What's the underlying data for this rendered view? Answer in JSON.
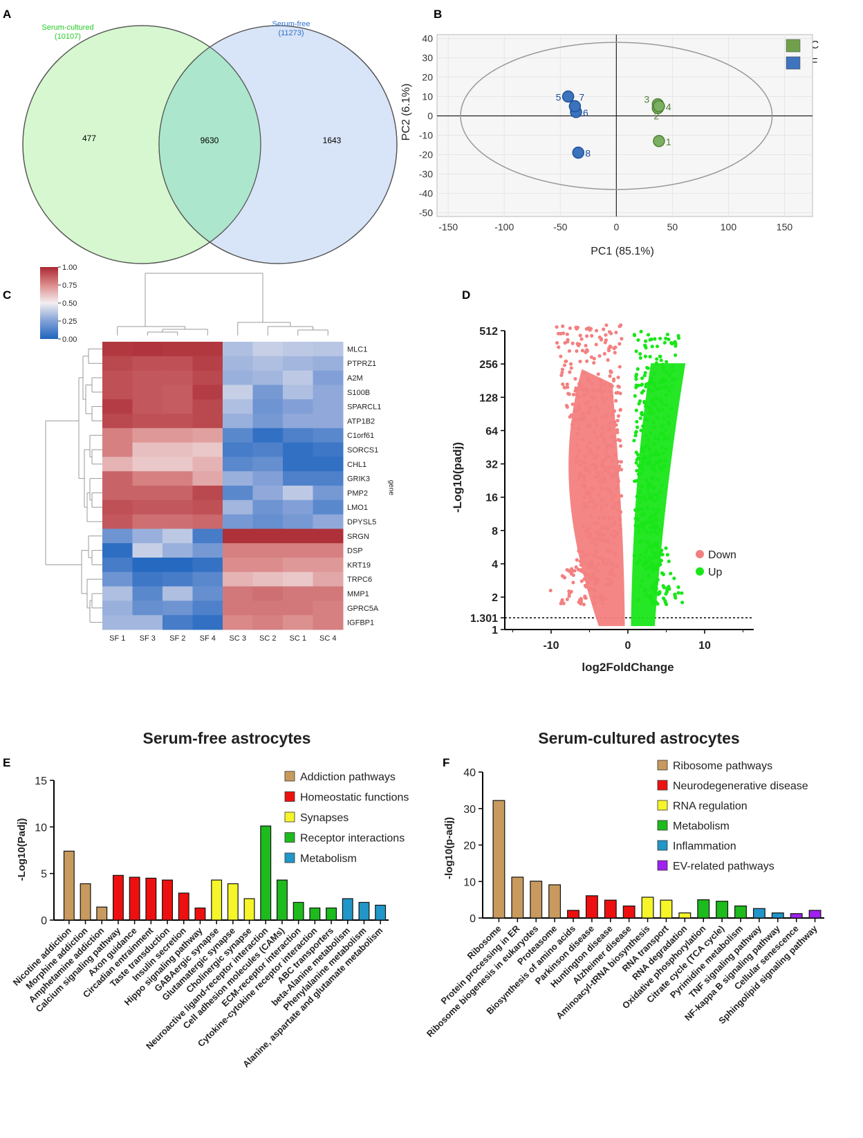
{
  "panel_labels": {
    "a": "A",
    "b": "B",
    "c": "C",
    "d": "D",
    "e": "E",
    "f": "F"
  },
  "chart_data": [
    {
      "type": "venn",
      "sets": [
        {
          "name": "Serum-cultured",
          "count_label": "(10107)",
          "only": "477",
          "color": "#d6f7cf"
        },
        {
          "name": "Serum-free",
          "count_label": "(11273)",
          "only": "1643",
          "color": "#d8e4f7"
        }
      ],
      "intersection": "9630"
    },
    {
      "type": "scatter",
      "title": "",
      "xlabel": "PC1 (85.1%)",
      "ylabel": "PC2 (6.1%)",
      "xlim": [
        -160,
        175
      ],
      "ylim": [
        -52,
        42
      ],
      "xticks": [
        -150,
        -100,
        -50,
        0,
        50,
        100,
        150
      ],
      "yticks": [
        40,
        30,
        20,
        10,
        0,
        -10,
        -20,
        -30,
        -40,
        -50
      ],
      "legend": [
        {
          "label": "SC",
          "color": "#70a04c"
        },
        {
          "label": "SF",
          "color": "#3f74bd"
        }
      ],
      "series": [
        {
          "name": "SC",
          "color": "#7ab060",
          "points": [
            {
              "x": 38,
              "y": -13,
              "label": "1"
            },
            {
              "x": 37,
              "y": 4,
              "label": "2"
            },
            {
              "x": 37,
              "y": 6,
              "label": "3"
            },
            {
              "x": 38,
              "y": 5,
              "label": "4"
            }
          ]
        },
        {
          "name": "SF",
          "color": "#3b73bc",
          "points": [
            {
              "x": -43,
              "y": 10,
              "label": "5"
            },
            {
              "x": -36,
              "y": 2,
              "label": "6"
            },
            {
              "x": -37,
              "y": 5,
              "label": "7"
            },
            {
              "x": -34,
              "y": -19,
              "label": "8"
            }
          ]
        }
      ]
    },
    {
      "type": "heatmap",
      "colorbar_ticks": [
        "1.00",
        "0.75",
        "0.50",
        "0.25",
        "0.00"
      ],
      "row_axis_label": "gene",
      "columns": [
        "SF 1",
        "SF 3",
        "SF 2",
        "SF 4",
        "SC 3",
        "SC 2",
        "SC 1",
        "SC 4"
      ],
      "rows": [
        "MLC1",
        "PTPRZ1",
        "A2M",
        "S100B",
        "SPARCL1",
        "ATP1B2",
        "C1orf61",
        "SORCS1",
        "CHL1",
        "GRIK3",
        "PMP2",
        "LMO1",
        "DPYSL5",
        "SRGN",
        "DSP",
        "KRT19",
        "TRPC6",
        "MMP1",
        "GPRC5A",
        "IGFBP1"
      ],
      "values": [
        [
          0.96,
          0.97,
          0.96,
          0.96,
          0.35,
          0.4,
          0.38,
          0.37
        ],
        [
          0.92,
          0.9,
          0.9,
          0.94,
          0.32,
          0.35,
          0.32,
          0.3
        ],
        [
          0.9,
          0.88,
          0.88,
          0.92,
          0.3,
          0.32,
          0.38,
          0.25
        ],
        [
          0.9,
          0.88,
          0.87,
          0.95,
          0.4,
          0.22,
          0.35,
          0.28
        ],
        [
          0.95,
          0.88,
          0.87,
          0.92,
          0.35,
          0.2,
          0.25,
          0.28
        ],
        [
          0.92,
          0.9,
          0.9,
          0.92,
          0.3,
          0.22,
          0.28,
          0.28
        ],
        [
          0.78,
          0.72,
          0.72,
          0.7,
          0.15,
          0.05,
          0.12,
          0.15
        ],
        [
          0.78,
          0.62,
          0.62,
          0.6,
          0.1,
          0.12,
          0.05,
          0.08
        ],
        [
          0.65,
          0.6,
          0.6,
          0.65,
          0.15,
          0.18,
          0.05,
          0.05
        ],
        [
          0.85,
          0.78,
          0.78,
          0.68,
          0.3,
          0.25,
          0.12,
          0.12
        ],
        [
          0.85,
          0.85,
          0.85,
          0.92,
          0.15,
          0.28,
          0.38,
          0.22
        ],
        [
          0.9,
          0.88,
          0.88,
          0.9,
          0.32,
          0.2,
          0.25,
          0.15
        ],
        [
          0.88,
          0.82,
          0.82,
          0.84,
          0.22,
          0.18,
          0.22,
          0.28
        ],
        [
          0.2,
          0.3,
          0.38,
          0.1,
          0.98,
          0.98,
          0.98,
          0.98
        ],
        [
          0.04,
          0.4,
          0.3,
          0.22,
          0.78,
          0.78,
          0.78,
          0.78
        ],
        [
          0.1,
          0.02,
          0.02,
          0.06,
          0.75,
          0.75,
          0.72,
          0.72
        ],
        [
          0.2,
          0.08,
          0.1,
          0.15,
          0.65,
          0.62,
          0.6,
          0.68
        ],
        [
          0.35,
          0.15,
          0.35,
          0.18,
          0.8,
          0.82,
          0.8,
          0.8
        ],
        [
          0.3,
          0.18,
          0.2,
          0.12,
          0.8,
          0.8,
          0.8,
          0.78
        ],
        [
          0.32,
          0.32,
          0.1,
          0.05,
          0.76,
          0.78,
          0.74,
          0.78
        ]
      ]
    },
    {
      "type": "volcano",
      "xlabel": "log2FoldChange",
      "ylabel": "-Log10(padj)",
      "yticks": [
        "512",
        "256",
        "128",
        "64",
        "32",
        "16",
        "8",
        "4",
        "2",
        "1.301",
        "1"
      ],
      "xticks": [
        "-10",
        "0",
        "10"
      ],
      "threshold": 1.301,
      "legend": [
        {
          "label": "Down",
          "color": "#f38080"
        },
        {
          "label": "Up",
          "color": "#19e619"
        }
      ]
    },
    {
      "type": "bar",
      "title": "Serum-free astrocytes",
      "ylabel": "-Log10(Padj)",
      "ylim": [
        0,
        15
      ],
      "yticks": [
        15,
        10,
        5,
        0
      ],
      "legend": [
        {
          "label": "Addiction pathways",
          "color": "#c89a5e"
        },
        {
          "label": "Homeostatic functions",
          "color": "#ee1010"
        },
        {
          "label": "Synapses",
          "color": "#f5f52a"
        },
        {
          "label": "Receptor interactions",
          "color": "#1dbb1d"
        },
        {
          "label": "Metabolism",
          "color": "#2196c8"
        }
      ],
      "categories": [
        "Nicotine addiction",
        "Morphine addiction",
        "Amphetamine addiction",
        "Calcium signaling pathway",
        "Axon guidance",
        "Circadian entrainment",
        "Taste transduction",
        "Insulin secretion",
        "Hippo signaling pathway",
        "GABAergic synapse",
        "Glutamatergic synapse",
        "Cholinergic synapse",
        "Neuroactive ligand-receptor interaction",
        "Cell adhesion molecules (CAMs)",
        "ECM-receptor interaction",
        "Cytokine-cytokine receptor interaction",
        "ABC transporters",
        "beta-Alanine metabolism",
        "Phenylalanine metabolism",
        "Alanine, aspartate and glutamate metabolism"
      ],
      "values": [
        7.4,
        3.9,
        1.4,
        4.8,
        4.6,
        4.5,
        4.3,
        2.9,
        1.3,
        4.3,
        3.9,
        2.3,
        10.1,
        4.3,
        1.9,
        1.3,
        1.3,
        2.3,
        1.9,
        1.6
      ],
      "colors": [
        "#c89a5e",
        "#c89a5e",
        "#c89a5e",
        "#ee1010",
        "#ee1010",
        "#ee1010",
        "#ee1010",
        "#ee1010",
        "#ee1010",
        "#f5f52a",
        "#f5f52a",
        "#f5f52a",
        "#1dbb1d",
        "#1dbb1d",
        "#1dbb1d",
        "#1dbb1d",
        "#1dbb1d",
        "#2196c8",
        "#2196c8",
        "#2196c8"
      ]
    },
    {
      "type": "bar",
      "title": "Serum-cultured astrocytes",
      "ylabel": "-log10(p-adj)",
      "ylim": [
        0,
        40
      ],
      "yticks": [
        40,
        30,
        20,
        10,
        0
      ],
      "legend": [
        {
          "label": "Ribosome pathways",
          "color": "#c89a5e"
        },
        {
          "label": "Neurodegenerative disease",
          "color": "#ee1010"
        },
        {
          "label": "RNA regulation",
          "color": "#f5f52a"
        },
        {
          "label": "Metabolism",
          "color": "#1dbb1d"
        },
        {
          "label": "Inflammation",
          "color": "#2196c8"
        },
        {
          "label": "EV-related pathways",
          "color": "#a020f0"
        }
      ],
      "categories": [
        "Ribosome",
        "Protein processing in ER",
        "Ribosome biogenesis in eukaryotes",
        "Proteasome",
        "Biosynthesis of amino acids",
        "Parkinson disease",
        "Huntington disease",
        "Alzheimer disease",
        "Aminoacyl-tRNA biosynthesis",
        "RNA transport",
        "RNA degradation",
        "Oxidative phosphorylation",
        "Citrate cycle (TCA cycle)",
        "Pyrimidine metabolism",
        "TNF signaling pathway",
        "NF-kappa B signaling pathway",
        "Cellular senescence",
        "Sphingolipid signaling pathway"
      ],
      "values": [
        32.2,
        11.2,
        10.1,
        9.1,
        2.1,
        6.1,
        4.9,
        3.3,
        5.7,
        4.9,
        1.4,
        5.0,
        4.6,
        3.3,
        2.6,
        1.4,
        1.2,
        2.1
      ],
      "colors": [
        "#c89a5e",
        "#c89a5e",
        "#c89a5e",
        "#c89a5e",
        "#ee1010",
        "#ee1010",
        "#ee1010",
        "#ee1010",
        "#f5f52a",
        "#f5f52a",
        "#f5f52a",
        "#1dbb1d",
        "#1dbb1d",
        "#1dbb1d",
        "#2196c8",
        "#2196c8",
        "#a020f0",
        "#a020f0"
      ]
    }
  ]
}
